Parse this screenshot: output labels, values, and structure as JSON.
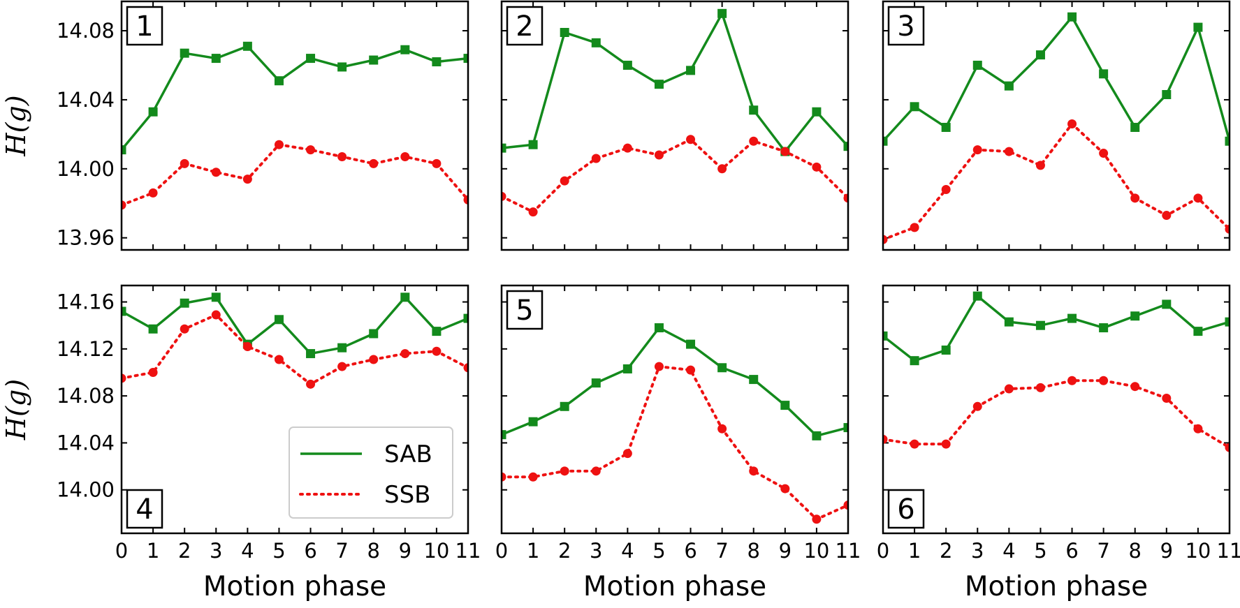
{
  "chart_data": [
    {
      "type": "line",
      "panel_label": "1",
      "x": [
        0,
        1,
        2,
        3,
        4,
        5,
        6,
        7,
        8,
        9,
        10,
        11
      ],
      "xlabel": "Motion phase",
      "ylabel": "H(g)",
      "ylim": [
        13.953,
        14.097
      ],
      "yticks": [
        "13.96",
        "14.00",
        "14.04",
        "14.08"
      ],
      "series": [
        {
          "name": "SAB",
          "values": [
            14.011,
            14.033,
            14.067,
            14.064,
            14.071,
            14.051,
            14.064,
            14.059,
            14.063,
            14.069,
            14.062,
            14.064
          ]
        },
        {
          "name": "SSB",
          "values": [
            13.979,
            13.986,
            14.003,
            13.998,
            13.994,
            14.014,
            14.011,
            14.007,
            14.003,
            14.007,
            14.003,
            13.982
          ]
        }
      ]
    },
    {
      "type": "line",
      "panel_label": "2",
      "x": [
        0,
        1,
        2,
        3,
        4,
        5,
        6,
        7,
        8,
        9,
        10,
        11
      ],
      "xlabel": "Motion phase",
      "ylabel": "",
      "ylim": [
        13.953,
        14.097
      ],
      "yticks": [],
      "series": [
        {
          "name": "SAB",
          "values": [
            14.012,
            14.014,
            14.079,
            14.073,
            14.06,
            14.049,
            14.057,
            14.09,
            14.034,
            14.01,
            14.033,
            14.013
          ]
        },
        {
          "name": "SSB",
          "values": [
            13.984,
            13.975,
            13.993,
            14.006,
            14.012,
            14.008,
            14.017,
            14.0,
            14.016,
            14.01,
            14.001,
            13.983
          ]
        }
      ]
    },
    {
      "type": "line",
      "panel_label": "3",
      "x": [
        0,
        1,
        2,
        3,
        4,
        5,
        6,
        7,
        8,
        9,
        10,
        11
      ],
      "xlabel": "Motion phase",
      "ylabel": "",
      "ylim": [
        13.953,
        14.097
      ],
      "yticks": [],
      "series": [
        {
          "name": "SAB",
          "values": [
            14.016,
            14.036,
            14.024,
            14.06,
            14.048,
            14.066,
            14.088,
            14.055,
            14.024,
            14.043,
            14.082,
            14.016
          ]
        },
        {
          "name": "SSB",
          "values": [
            13.959,
            13.966,
            13.988,
            14.011,
            14.01,
            14.002,
            14.026,
            14.009,
            13.983,
            13.973,
            13.983,
            13.965
          ]
        }
      ]
    },
    {
      "type": "line",
      "panel_label": "4",
      "x": [
        0,
        1,
        2,
        3,
        4,
        5,
        6,
        7,
        8,
        9,
        10,
        11
      ],
      "xlabel": "Motion phase",
      "ylabel": "H(g)",
      "ylim": [
        13.963,
        14.174
      ],
      "yticks": [
        "14.00",
        "14.04",
        "14.08",
        "14.12",
        "14.16"
      ],
      "legend": {
        "position": "lower-right",
        "entries": [
          "SAB",
          "SSB"
        ]
      },
      "series": [
        {
          "name": "SAB",
          "values": [
            14.152,
            14.137,
            14.159,
            14.164,
            14.124,
            14.145,
            14.116,
            14.121,
            14.133,
            14.164,
            14.135,
            14.146
          ]
        },
        {
          "name": "SSB",
          "values": [
            14.095,
            14.1,
            14.137,
            14.149,
            14.122,
            14.111,
            14.09,
            14.105,
            14.111,
            14.116,
            14.118,
            14.104
          ]
        }
      ]
    },
    {
      "type": "line",
      "panel_label": "5",
      "x": [
        0,
        1,
        2,
        3,
        4,
        5,
        6,
        7,
        8,
        9,
        10,
        11
      ],
      "xlabel": "Motion phase",
      "ylabel": "",
      "ylim": [
        13.963,
        14.174
      ],
      "yticks": [],
      "series": [
        {
          "name": "SAB",
          "values": [
            14.047,
            14.058,
            14.071,
            14.091,
            14.103,
            14.138,
            14.124,
            14.104,
            14.094,
            14.072,
            14.046,
            14.053
          ]
        },
        {
          "name": "SSB",
          "values": [
            14.011,
            14.011,
            14.016,
            14.016,
            14.031,
            14.105,
            14.102,
            14.052,
            14.016,
            14.001,
            13.975,
            13.987
          ]
        }
      ]
    },
    {
      "type": "line",
      "panel_label": "6",
      "x": [
        0,
        1,
        2,
        3,
        4,
        5,
        6,
        7,
        8,
        9,
        10,
        11
      ],
      "xlabel": "Motion phase",
      "ylabel": "",
      "ylim": [
        13.963,
        14.174
      ],
      "yticks": [],
      "series": [
        {
          "name": "SAB",
          "values": [
            14.131,
            14.11,
            14.119,
            14.165,
            14.143,
            14.14,
            14.146,
            14.138,
            14.148,
            14.158,
            14.135,
            14.143
          ]
        },
        {
          "name": "SSB",
          "values": [
            14.043,
            14.039,
            14.039,
            14.071,
            14.086,
            14.087,
            14.093,
            14.093,
            14.088,
            14.078,
            14.052,
            14.036
          ]
        }
      ]
    }
  ],
  "style": {
    "sab_color": "#138a1c",
    "ssb_color": "#ee1111",
    "axis_color": "#000000"
  }
}
